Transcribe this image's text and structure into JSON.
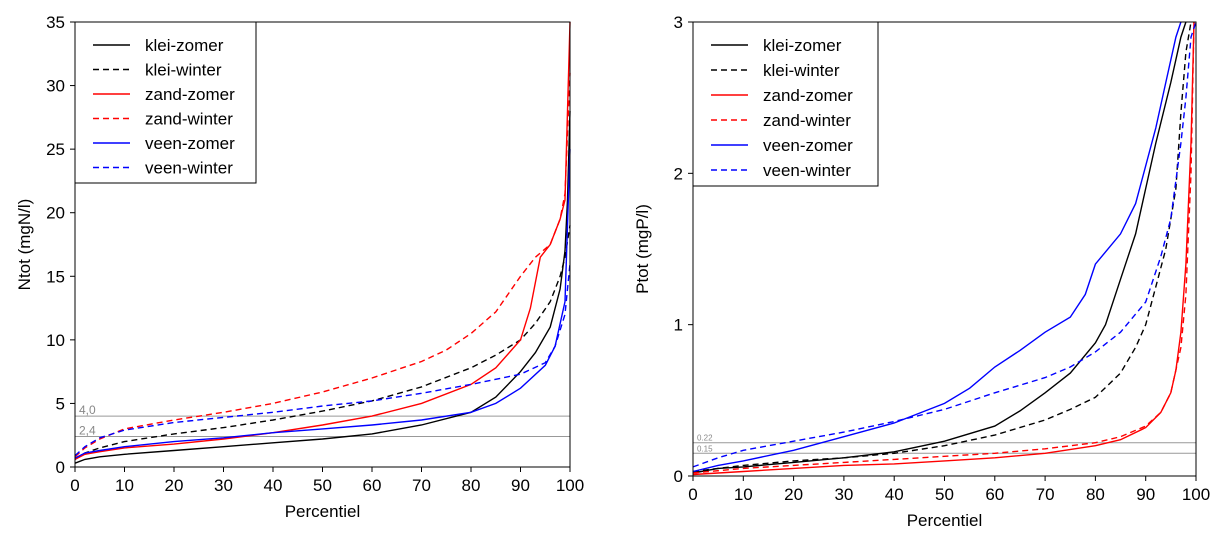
{
  "chart_data": [
    {
      "type": "line",
      "xlabel": "Percentiel",
      "ylabel": "Ntot (mgN/l)",
      "xlim": [
        0,
        100
      ],
      "ylim": [
        0,
        35
      ],
      "xticks": [
        "0",
        "10",
        "20",
        "30",
        "40",
        "50",
        "60",
        "70",
        "80",
        "90",
        "100"
      ],
      "yticks": [
        "0",
        "5",
        "10",
        "15",
        "20",
        "25",
        "30",
        "35"
      ],
      "legend_position": "top-left",
      "reference_lines": [
        {
          "label": "4,0",
          "y": 4.0
        },
        {
          "label": "2,4",
          "y": 2.4
        }
      ],
      "series": [
        {
          "name": "klei-zomer",
          "color": "#000000",
          "dash": false,
          "points": [
            [
              0,
              0.3
            ],
            [
              2,
              0.6
            ],
            [
              5,
              0.8
            ],
            [
              10,
              1.0
            ],
            [
              20,
              1.3
            ],
            [
              30,
              1.6
            ],
            [
              40,
              1.9
            ],
            [
              50,
              2.2
            ],
            [
              60,
              2.6
            ],
            [
              70,
              3.3
            ],
            [
              80,
              4.3
            ],
            [
              85,
              5.5
            ],
            [
              90,
              7.5
            ],
            [
              93,
              9.0
            ],
            [
              96,
              11.0
            ],
            [
              98,
              14.0
            ],
            [
              99,
              17.0
            ],
            [
              99.5,
              21.0
            ],
            [
              100,
              28.0
            ]
          ]
        },
        {
          "name": "klei-winter",
          "color": "#000000",
          "dash": true,
          "points": [
            [
              0,
              0.6
            ],
            [
              2,
              1.1
            ],
            [
              5,
              1.5
            ],
            [
              10,
              2.0
            ],
            [
              20,
              2.6
            ],
            [
              30,
              3.1
            ],
            [
              40,
              3.7
            ],
            [
              50,
              4.4
            ],
            [
              60,
              5.2
            ],
            [
              70,
              6.3
            ],
            [
              80,
              7.8
            ],
            [
              85,
              8.8
            ],
            [
              90,
              10.0
            ],
            [
              93,
              11.3
            ],
            [
              96,
              13.0
            ],
            [
              98,
              15.0
            ],
            [
              99,
              16.5
            ],
            [
              100,
              19.0
            ]
          ]
        },
        {
          "name": "zand-zomer",
          "color": "#ff0000",
          "dash": false,
          "points": [
            [
              0,
              0.6
            ],
            [
              2,
              1.0
            ],
            [
              5,
              1.2
            ],
            [
              10,
              1.5
            ],
            [
              20,
              1.8
            ],
            [
              30,
              2.2
            ],
            [
              40,
              2.7
            ],
            [
              50,
              3.3
            ],
            [
              60,
              4.0
            ],
            [
              70,
              5.0
            ],
            [
              80,
              6.5
            ],
            [
              85,
              7.8
            ],
            [
              90,
              10.0
            ],
            [
              92,
              12.5
            ],
            [
              94,
              16.5
            ],
            [
              96,
              17.5
            ],
            [
              98,
              19.5
            ],
            [
              99,
              21.0
            ],
            [
              100,
              35.0
            ]
          ]
        },
        {
          "name": "zand-winter",
          "color": "#ff0000",
          "dash": true,
          "points": [
            [
              0,
              0.8
            ],
            [
              2,
              1.5
            ],
            [
              5,
              2.2
            ],
            [
              10,
              3.0
            ],
            [
              20,
              3.7
            ],
            [
              30,
              4.3
            ],
            [
              40,
              5.0
            ],
            [
              50,
              5.9
            ],
            [
              60,
              7.0
            ],
            [
              70,
              8.3
            ],
            [
              75,
              9.2
            ],
            [
              80,
              10.5
            ],
            [
              85,
              12.2
            ],
            [
              90,
              15.0
            ],
            [
              93,
              16.5
            ],
            [
              96,
              17.5
            ],
            [
              98,
              19.5
            ],
            [
              99,
              21.5
            ],
            [
              100,
              31.0
            ]
          ]
        },
        {
          "name": "veen-zomer",
          "color": "#0000ff",
          "dash": false,
          "points": [
            [
              0,
              0.7
            ],
            [
              2,
              1.1
            ],
            [
              5,
              1.3
            ],
            [
              10,
              1.6
            ],
            [
              20,
              2.0
            ],
            [
              30,
              2.3
            ],
            [
              40,
              2.7
            ],
            [
              50,
              3.0
            ],
            [
              60,
              3.3
            ],
            [
              70,
              3.7
            ],
            [
              80,
              4.3
            ],
            [
              85,
              5.0
            ],
            [
              90,
              6.2
            ],
            [
              95,
              8.0
            ],
            [
              97,
              9.5
            ],
            [
              99,
              13.0
            ],
            [
              100,
              25.0
            ]
          ]
        },
        {
          "name": "veen-winter",
          "color": "#0000ff",
          "dash": true,
          "points": [
            [
              0,
              0.9
            ],
            [
              2,
              1.6
            ],
            [
              5,
              2.3
            ],
            [
              10,
              2.9
            ],
            [
              20,
              3.5
            ],
            [
              30,
              3.9
            ],
            [
              40,
              4.3
            ],
            [
              50,
              4.8
            ],
            [
              60,
              5.2
            ],
            [
              70,
              5.8
            ],
            [
              80,
              6.5
            ],
            [
              90,
              7.3
            ],
            [
              95,
              8.2
            ],
            [
              97,
              9.5
            ],
            [
              99,
              12.0
            ],
            [
              100,
              16.0
            ]
          ]
        }
      ]
    },
    {
      "type": "line",
      "xlabel": "Percentiel",
      "ylabel": "Ptot (mgP/l)",
      "xlim": [
        0,
        100
      ],
      "ylim": [
        0,
        3
      ],
      "xticks": [
        "0",
        "10",
        "20",
        "30",
        "40",
        "50",
        "60",
        "70",
        "80",
        "90",
        "100"
      ],
      "yticks": [
        "0",
        "1",
        "2",
        "3"
      ],
      "legend_position": "top-left",
      "reference_lines": [
        {
          "label": "0.22",
          "y": 0.22
        },
        {
          "label": "0.15",
          "y": 0.15
        }
      ],
      "series": [
        {
          "name": "klei-zomer",
          "color": "#000000",
          "dash": false,
          "points": [
            [
              0,
              0.02
            ],
            [
              5,
              0.05
            ],
            [
              10,
              0.06
            ],
            [
              20,
              0.09
            ],
            [
              30,
              0.12
            ],
            [
              40,
              0.16
            ],
            [
              50,
              0.23
            ],
            [
              60,
              0.33
            ],
            [
              65,
              0.43
            ],
            [
              70,
              0.55
            ],
            [
              75,
              0.68
            ],
            [
              80,
              0.88
            ],
            [
              82,
              1.0
            ],
            [
              85,
              1.3
            ],
            [
              88,
              1.6
            ],
            [
              90,
              1.9
            ],
            [
              92,
              2.2
            ],
            [
              95,
              2.6
            ],
            [
              97,
              2.9
            ],
            [
              98,
              3.0
            ]
          ]
        },
        {
          "name": "klei-winter",
          "color": "#000000",
          "dash": true,
          "points": [
            [
              0,
              0.03
            ],
            [
              5,
              0.05
            ],
            [
              10,
              0.07
            ],
            [
              20,
              0.1
            ],
            [
              30,
              0.12
            ],
            [
              40,
              0.15
            ],
            [
              50,
              0.2
            ],
            [
              60,
              0.27
            ],
            [
              70,
              0.37
            ],
            [
              75,
              0.44
            ],
            [
              80,
              0.52
            ],
            [
              85,
              0.68
            ],
            [
              88,
              0.85
            ],
            [
              90,
              1.0
            ],
            [
              92,
              1.25
            ],
            [
              94,
              1.5
            ],
            [
              96,
              1.9
            ],
            [
              97,
              2.4
            ],
            [
              98,
              2.8
            ],
            [
              99,
              3.0
            ]
          ]
        },
        {
          "name": "zand-zomer",
          "color": "#ff0000",
          "dash": false,
          "points": [
            [
              0,
              0.01
            ],
            [
              10,
              0.03
            ],
            [
              20,
              0.05
            ],
            [
              30,
              0.07
            ],
            [
              40,
              0.08
            ],
            [
              50,
              0.1
            ],
            [
              60,
              0.12
            ],
            [
              70,
              0.15
            ],
            [
              80,
              0.2
            ],
            [
              85,
              0.24
            ],
            [
              90,
              0.32
            ],
            [
              93,
              0.42
            ],
            [
              95,
              0.55
            ],
            [
              96,
              0.7
            ],
            [
              97,
              0.95
            ],
            [
              98,
              1.4
            ],
            [
              99,
              2.2
            ],
            [
              99.6,
              3.0
            ]
          ]
        },
        {
          "name": "zand-winter",
          "color": "#ff0000",
          "dash": true,
          "points": [
            [
              0,
              0.02
            ],
            [
              10,
              0.05
            ],
            [
              20,
              0.07
            ],
            [
              30,
              0.09
            ],
            [
              40,
              0.11
            ],
            [
              50,
              0.13
            ],
            [
              60,
              0.15
            ],
            [
              70,
              0.18
            ],
            [
              80,
              0.22
            ],
            [
              85,
              0.26
            ],
            [
              90,
              0.33
            ],
            [
              93,
              0.42
            ],
            [
              95,
              0.55
            ],
            [
              97,
              0.85
            ],
            [
              98,
              1.2
            ],
            [
              99,
              2.0
            ],
            [
              99.6,
              3.0
            ]
          ]
        },
        {
          "name": "veen-zomer",
          "color": "#0000ff",
          "dash": false,
          "points": [
            [
              0,
              0.03
            ],
            [
              5,
              0.07
            ],
            [
              10,
              0.1
            ],
            [
              20,
              0.17
            ],
            [
              30,
              0.26
            ],
            [
              40,
              0.35
            ],
            [
              50,
              0.48
            ],
            [
              55,
              0.58
            ],
            [
              60,
              0.72
            ],
            [
              65,
              0.83
            ],
            [
              70,
              0.95
            ],
            [
              75,
              1.05
            ],
            [
              78,
              1.2
            ],
            [
              80,
              1.4
            ],
            [
              85,
              1.6
            ],
            [
              88,
              1.8
            ],
            [
              90,
              2.05
            ],
            [
              92,
              2.3
            ],
            [
              94,
              2.6
            ],
            [
              96,
              2.9
            ],
            [
              97,
              3.0
            ]
          ]
        },
        {
          "name": "veen-winter",
          "color": "#0000ff",
          "dash": true,
          "points": [
            [
              0,
              0.06
            ],
            [
              5,
              0.12
            ],
            [
              10,
              0.17
            ],
            [
              20,
              0.23
            ],
            [
              30,
              0.29
            ],
            [
              40,
              0.36
            ],
            [
              50,
              0.44
            ],
            [
              60,
              0.55
            ],
            [
              70,
              0.65
            ],
            [
              75,
              0.72
            ],
            [
              80,
              0.82
            ],
            [
              85,
              0.95
            ],
            [
              90,
              1.15
            ],
            [
              93,
              1.45
            ],
            [
              95,
              1.7
            ],
            [
              97,
              2.2
            ],
            [
              98,
              2.5
            ],
            [
              99,
              2.9
            ],
            [
              100,
              3.0
            ]
          ]
        }
      ]
    }
  ]
}
